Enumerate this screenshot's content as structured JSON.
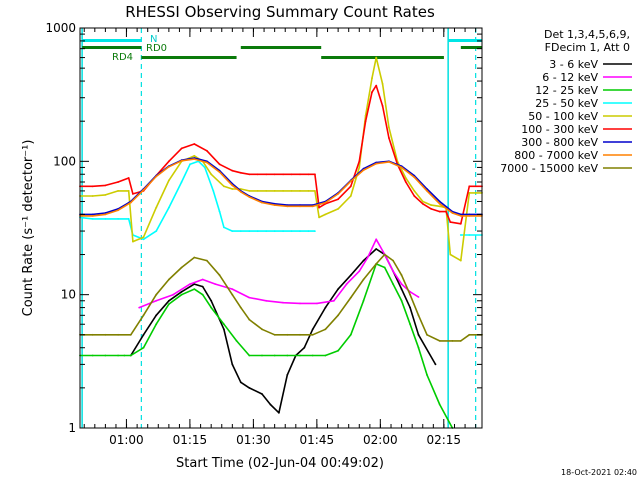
{
  "colors": {
    "background": "#ffffff",
    "axis": "#000000",
    "night_marker": "#00e0e0",
    "saa_marker": "#0a7a0a",
    "attenuator_bar": "#00e5e5"
  },
  "chart_data": {
    "type": "line",
    "title": "RHESSI Observing Summary Count Rates",
    "xlabel": "Start Time (02-Jun-04 00:49:02)",
    "ylabel": "Count Rate (s⁻¹ detector⁻¹)",
    "yscale": "log",
    "ylim": [
      1,
      1000
    ],
    "y_ticks": [
      {
        "value": 1,
        "label": "1"
      },
      {
        "value": 10,
        "label": "10"
      },
      {
        "value": 100,
        "label": "100"
      },
      {
        "value": 1000,
        "label": "1000"
      }
    ],
    "x_unit": "minutes after 00:49:02",
    "xlim": [
      0,
      95
    ],
    "x_ticks": [
      {
        "value": 10.97,
        "label": "01:00"
      },
      {
        "value": 25.97,
        "label": "01:15"
      },
      {
        "value": 40.97,
        "label": "01:30"
      },
      {
        "value": 55.97,
        "label": "01:45"
      },
      {
        "value": 70.97,
        "label": "02:00"
      },
      {
        "value": 85.97,
        "label": "02:15"
      }
    ],
    "legend_header": [
      "Det 1,3,4,5,6,9,",
      "FDecim 1, Att 0"
    ],
    "legend_position": "right",
    "series": [
      {
        "name": "3 - 6 keV",
        "color": "#000000",
        "x": [
          0,
          6,
          9,
          12,
          15,
          18,
          21,
          24,
          27,
          29,
          31,
          34,
          36,
          38,
          40,
          43,
          45,
          47,
          49,
          51,
          53,
          55,
          58,
          61,
          64,
          67,
          70,
          72,
          74,
          76,
          78,
          80,
          84,
          88,
          92,
          95
        ],
        "values": [
          null,
          null,
          null,
          3.5,
          5,
          7,
          9,
          10.5,
          12,
          11.5,
          9,
          5.5,
          3,
          2.2,
          2,
          1.8,
          1.5,
          1.3,
          2.5,
          3.5,
          4,
          5.5,
          8,
          11,
          14,
          18,
          22,
          20,
          15,
          11,
          8,
          5,
          3,
          null,
          null,
          null
        ]
      },
      {
        "name": "6 - 12 keV",
        "color": "#ff00ff",
        "x": [
          0,
          6,
          10,
          14,
          18,
          22,
          26,
          29,
          32,
          36,
          40,
          44,
          48,
          52,
          56,
          60,
          63,
          66,
          68,
          70,
          72,
          74,
          76,
          78,
          80,
          84,
          88,
          92,
          95
        ],
        "values": [
          null,
          null,
          null,
          8,
          9,
          10,
          12,
          13,
          12,
          11,
          9.5,
          9,
          8.7,
          8.6,
          8.6,
          9,
          12,
          15,
          19,
          26,
          20,
          15,
          12,
          10.5,
          9.6,
          null,
          null,
          null,
          null
        ]
      },
      {
        "name": "12 - 25 keV",
        "color": "#00cc00",
        "x": [
          0,
          3,
          6,
          9,
          10.5,
          12,
          15,
          18,
          21,
          24,
          27,
          29,
          31,
          34,
          37,
          40,
          43,
          46,
          49,
          52,
          55,
          58,
          61,
          64,
          67,
          70,
          72,
          74,
          76,
          78,
          80,
          82,
          85,
          88,
          92,
          95
        ],
        "values": [
          3.5,
          3.5,
          3.5,
          3.5,
          3.5,
          3.5,
          4,
          6,
          8.5,
          10,
          11,
          10,
          8,
          6,
          4.5,
          3.5,
          3.5,
          3.5,
          3.5,
          3.5,
          3.5,
          3.5,
          3.8,
          5,
          9,
          17,
          16,
          12,
          9,
          6,
          4,
          2.5,
          1.5,
          1,
          null,
          null
        ]
      },
      {
        "name": "25 - 50 keV",
        "color": "#00ffff",
        "x": [
          0,
          3,
          6,
          9,
          11.5,
          12.5,
          15,
          18,
          21,
          24,
          26,
          28,
          29.5,
          31.5,
          33,
          34,
          36,
          38,
          40,
          42,
          44,
          46,
          48,
          50,
          52,
          54,
          55.5,
          56.5,
          58,
          61,
          64,
          67,
          70,
          73,
          76,
          79,
          82,
          84,
          86,
          88,
          90,
          92,
          95
        ],
        "values": [
          38,
          37,
          37,
          37,
          37,
          28,
          26,
          30,
          45,
          70,
          95,
          100,
          90,
          60,
          42,
          32,
          30,
          30,
          30,
          30,
          30,
          30,
          30,
          30,
          30,
          30,
          30,
          null,
          null,
          null,
          null,
          null,
          null,
          null,
          null,
          null,
          null,
          null,
          null,
          null,
          28,
          28,
          28
        ]
      },
      {
        "name": "50 - 100 keV",
        "color": "#cccc00",
        "x": [
          0,
          3,
          6,
          9,
          11.5,
          12.5,
          15,
          18,
          21,
          24,
          27,
          29,
          31,
          34,
          36,
          38,
          40,
          42,
          44,
          46,
          48,
          50,
          52,
          54,
          55.5,
          56.5,
          58,
          61,
          64,
          66,
          67.5,
          69,
          70,
          71.5,
          73,
          75,
          77,
          79,
          81,
          83,
          85,
          86.5,
          87.5,
          90,
          92,
          95
        ],
        "values": [
          55,
          55,
          56,
          60,
          60,
          25,
          27,
          45,
          72,
          100,
          110,
          100,
          80,
          65,
          62,
          62,
          60,
          60,
          60,
          60,
          60,
          60,
          60,
          60,
          60,
          38,
          40,
          44,
          55,
          90,
          220,
          420,
          600,
          380,
          180,
          100,
          75,
          60,
          50,
          47,
          46,
          45,
          20,
          18,
          58,
          58
        ]
      },
      {
        "name": "100 - 300 keV",
        "color": "#ff0000",
        "x": [
          0,
          3,
          6,
          9,
          11.5,
          12.5,
          15,
          18,
          21,
          24,
          27,
          30,
          33,
          36,
          38,
          40,
          42,
          44,
          46,
          48,
          50,
          52,
          54,
          55.5,
          56.5,
          58,
          61,
          64,
          66,
          67.5,
          69,
          70,
          71.5,
          73,
          75,
          77,
          79,
          81,
          83,
          85,
          86.5,
          87.5,
          90,
          92,
          95
        ],
        "values": [
          65,
          65,
          66,
          70,
          75,
          57,
          60,
          78,
          100,
          125,
          135,
          120,
          95,
          85,
          82,
          80,
          80,
          80,
          80,
          80,
          80,
          80,
          80,
          80,
          45,
          48,
          52,
          65,
          100,
          200,
          330,
          370,
          260,
          150,
          95,
          70,
          55,
          48,
          44,
          42,
          42,
          35,
          34,
          65,
          65
        ]
      },
      {
        "name": "300 - 800 keV",
        "color": "#0000cc",
        "x": [
          0,
          3,
          6,
          9,
          12,
          15,
          18,
          21,
          24,
          27,
          30,
          33,
          36,
          38,
          40,
          43,
          46,
          49,
          52,
          55,
          58,
          61,
          64,
          67,
          70,
          73,
          76,
          79,
          82,
          85,
          88,
          90,
          92,
          95
        ],
        "values": [
          40,
          40,
          41,
          44,
          50,
          62,
          78,
          92,
          102,
          106,
          100,
          85,
          68,
          60,
          55,
          50,
          48,
          47,
          47,
          47,
          50,
          58,
          72,
          88,
          98,
          100,
          92,
          78,
          62,
          50,
          42,
          40,
          40,
          40
        ]
      },
      {
        "name": "800 - 7000 keV",
        "color": "#ff8000",
        "x": [
          0,
          3,
          6,
          9,
          12,
          15,
          18,
          21,
          24,
          27,
          30,
          33,
          36,
          38,
          40,
          43,
          46,
          49,
          52,
          55,
          58,
          61,
          64,
          67,
          70,
          73,
          76,
          79,
          82,
          85,
          88,
          90,
          92,
          95
        ],
        "values": [
          39,
          39,
          40,
          43,
          49,
          61,
          77,
          91,
          101,
          104,
          98,
          83,
          66,
          59,
          54,
          49,
          47,
          46,
          46,
          46,
          49,
          57,
          71,
          86,
          96,
          99,
          90,
          76,
          60,
          48,
          41,
          39,
          39,
          39
        ]
      },
      {
        "name": "7000 - 15000 keV",
        "color": "#808000",
        "x": [
          0,
          3,
          6,
          9,
          12,
          15,
          18,
          21,
          24,
          27,
          30,
          33,
          36,
          38,
          40,
          43,
          46,
          49,
          52,
          55,
          58,
          61,
          64,
          67,
          70,
          72,
          74,
          76,
          78,
          80,
          82,
          85,
          88,
          90,
          92,
          95
        ],
        "values": [
          5,
          5,
          5,
          5,
          5,
          7,
          10,
          13,
          16,
          19,
          18,
          14,
          10,
          8,
          6.5,
          5.5,
          5,
          5,
          5,
          5,
          5.5,
          7,
          9.5,
          13,
          17,
          20,
          18,
          14,
          10,
          7,
          5,
          4.5,
          4.5,
          4.5,
          5,
          5
        ]
      }
    ],
    "annotations": [
      {
        "label": "N",
        "color": "#00cccc"
      },
      {
        "label": "RD0",
        "color": "#0a7a0a"
      },
      {
        "label": "RD4",
        "color": "#0a7a0a"
      }
    ],
    "timestamp": "18-Oct-2021 02:40"
  }
}
